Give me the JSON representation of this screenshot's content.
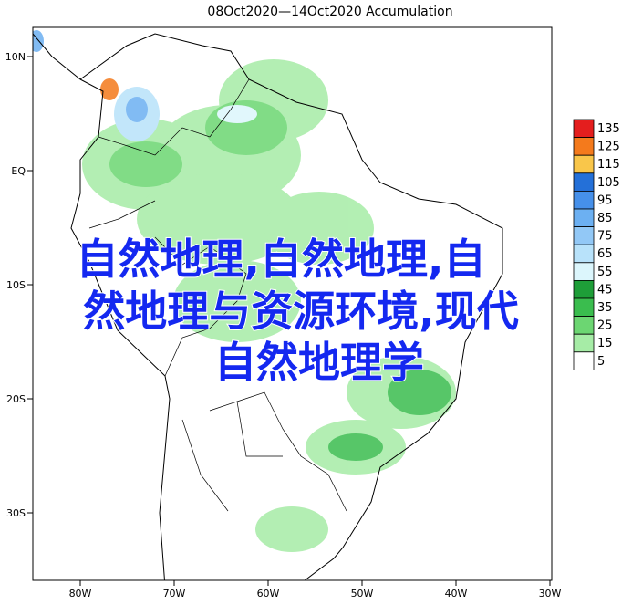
{
  "title": "08Oct2020—14Oct2020 Accumulation",
  "lat_labels": [
    "10N",
    "EQ",
    "10S",
    "20S",
    "30S"
  ],
  "lon_labels": [
    "80W",
    "70W",
    "60W",
    "50W",
    "40W",
    "30W"
  ],
  "legend": {
    "levels": [
      135,
      125,
      115,
      105,
      95,
      85,
      75,
      65,
      55,
      45,
      35,
      25,
      15,
      5
    ],
    "colors": [
      "#e41e1e",
      "#f47a1c",
      "#f9c64a",
      "#2470d8",
      "#4690ea",
      "#6cb0f2",
      "#92c8f6",
      "#b8e2fa",
      "#dcf6fc",
      "#1e9e38",
      "#3abd4e",
      "#6cd672",
      "#a6eca6",
      "#ffffff"
    ]
  },
  "overlay_text": [
    "自然地理,自然地理,自",
    "然地理与资源环境,现代",
    "自然地理学"
  ]
}
